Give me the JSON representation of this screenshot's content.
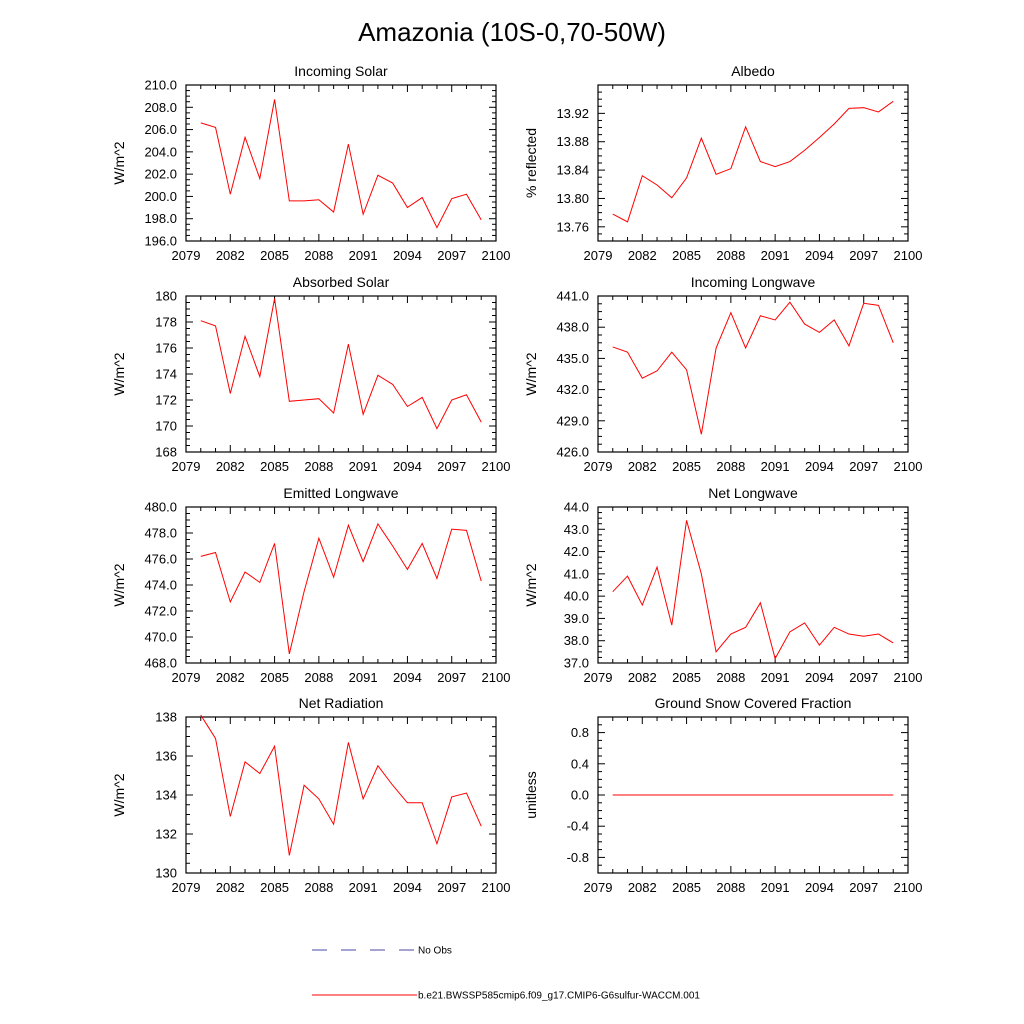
{
  "title": "Amazonia (10S-0,70-50W)",
  "colors": {
    "series": "#ff0000",
    "obs": "#4a4aa8",
    "axis": "#000000"
  },
  "legend": {
    "obs_label": "No Obs",
    "model_label": "b.e21.BWSSP585cmip6.f09_g17.CMIP6-G6sulfur-WACCM.001"
  },
  "chart_data": [
    {
      "type": "line",
      "title": "Incoming Solar",
      "ylabel": "W/m^2",
      "xlim": [
        2079,
        2100
      ],
      "ylim": [
        196,
        210
      ],
      "xticks": [
        "2079",
        "2082",
        "2085",
        "2088",
        "2091",
        "2094",
        "2097",
        "2100"
      ],
      "yticks": [
        "196.0",
        "198.0",
        "200.0",
        "202.0",
        "204.0",
        "206.0",
        "208.0",
        "210.0"
      ],
      "series": [
        {
          "x": [
            2080,
            2081,
            2082,
            2083,
            2084,
            2085,
            2086,
            2087,
            2088,
            2089,
            2090,
            2091,
            2092,
            2093,
            2094,
            2095,
            2096,
            2097,
            2098,
            2099
          ],
          "values": [
            206.6,
            206.2,
            200.2,
            205.3,
            201.6,
            208.7,
            199.6,
            199.6,
            199.7,
            198.6,
            204.7,
            198.4,
            201.9,
            201.2,
            199.0,
            199.9,
            197.2,
            199.8,
            200.2,
            197.9
          ]
        }
      ]
    },
    {
      "type": "line",
      "title": "Albedo",
      "ylabel": "% reflected",
      "xlim": [
        2079,
        2100
      ],
      "ylim": [
        13.74,
        13.96
      ],
      "xticks": [
        "2079",
        "2082",
        "2085",
        "2088",
        "2091",
        "2094",
        "2097",
        "2100"
      ],
      "yticks": [
        "13.76",
        "13.80",
        "13.84",
        "13.88",
        "13.92"
      ],
      "series": [
        {
          "x": [
            2080,
            2081,
            2082,
            2083,
            2084,
            2085,
            2086,
            2087,
            2088,
            2089,
            2090,
            2091,
            2092,
            2093,
            2094,
            2095,
            2096,
            2097,
            2098,
            2099
          ],
          "values": [
            13.778,
            13.767,
            13.832,
            13.819,
            13.801,
            13.829,
            13.885,
            13.834,
            13.842,
            13.901,
            13.852,
            13.845,
            13.852,
            13.868,
            13.886,
            13.905,
            13.927,
            13.928,
            13.922,
            13.937
          ]
        }
      ]
    },
    {
      "type": "line",
      "title": "Absorbed Solar",
      "ylabel": "W/m^2",
      "xlim": [
        2079,
        2100
      ],
      "ylim": [
        168,
        180
      ],
      "xticks": [
        "2079",
        "2082",
        "2085",
        "2088",
        "2091",
        "2094",
        "2097",
        "2100"
      ],
      "yticks": [
        "168",
        "170",
        "172",
        "174",
        "176",
        "178",
        "180"
      ],
      "series": [
        {
          "x": [
            2080,
            2081,
            2082,
            2083,
            2084,
            2085,
            2086,
            2087,
            2088,
            2089,
            2090,
            2091,
            2092,
            2093,
            2094,
            2095,
            2096,
            2097,
            2098,
            2099
          ],
          "values": [
            178.1,
            177.7,
            172.5,
            176.9,
            173.8,
            179.8,
            171.9,
            172.0,
            172.1,
            171.0,
            176.3,
            170.9,
            173.9,
            173.2,
            171.5,
            172.2,
            169.8,
            172.0,
            172.4,
            170.3
          ]
        }
      ]
    },
    {
      "type": "line",
      "title": "Incoming Longwave",
      "ylabel": "W/m^2",
      "xlim": [
        2079,
        2100
      ],
      "ylim": [
        426,
        441
      ],
      "xticks": [
        "2079",
        "2082",
        "2085",
        "2088",
        "2091",
        "2094",
        "2097",
        "2100"
      ],
      "yticks": [
        "426.0",
        "429.0",
        "432.0",
        "435.0",
        "438.0",
        "441.0"
      ],
      "series": [
        {
          "x": [
            2080,
            2081,
            2082,
            2083,
            2084,
            2085,
            2086,
            2087,
            2088,
            2089,
            2090,
            2091,
            2092,
            2093,
            2094,
            2095,
            2096,
            2097,
            2098,
            2099
          ],
          "values": [
            436.1,
            435.6,
            433.1,
            433.8,
            435.6,
            433.9,
            427.7,
            436.0,
            439.4,
            436.0,
            439.1,
            438.7,
            440.4,
            438.3,
            437.5,
            438.7,
            436.2,
            440.3,
            440.1,
            436.5
          ]
        }
      ]
    },
    {
      "type": "line",
      "title": "Emitted Longwave",
      "ylabel": "W/m^2",
      "xlim": [
        2079,
        2100
      ],
      "ylim": [
        468,
        480
      ],
      "xticks": [
        "2079",
        "2082",
        "2085",
        "2088",
        "2091",
        "2094",
        "2097",
        "2100"
      ],
      "yticks": [
        "468.0",
        "470.0",
        "472.0",
        "474.0",
        "476.0",
        "478.0",
        "480.0"
      ],
      "series": [
        {
          "x": [
            2080,
            2081,
            2082,
            2083,
            2084,
            2085,
            2086,
            2087,
            2088,
            2089,
            2090,
            2091,
            2092,
            2093,
            2094,
            2095,
            2096,
            2097,
            2098,
            2099
          ],
          "values": [
            476.2,
            476.5,
            472.7,
            475.0,
            474.2,
            477.2,
            468.7,
            473.5,
            477.6,
            474.6,
            478.6,
            475.8,
            478.7,
            477.0,
            475.2,
            477.2,
            474.5,
            478.3,
            478.2,
            474.3
          ]
        }
      ]
    },
    {
      "type": "line",
      "title": "Net Longwave",
      "ylabel": "W/m^2",
      "xlim": [
        2079,
        2100
      ],
      "ylim": [
        37,
        44
      ],
      "xticks": [
        "2079",
        "2082",
        "2085",
        "2088",
        "2091",
        "2094",
        "2097",
        "2100"
      ],
      "yticks": [
        "37.0",
        "38.0",
        "39.0",
        "40.0",
        "41.0",
        "42.0",
        "43.0",
        "44.0"
      ],
      "series": [
        {
          "x": [
            2080,
            2081,
            2082,
            2083,
            2084,
            2085,
            2086,
            2087,
            2088,
            2089,
            2090,
            2091,
            2092,
            2093,
            2094,
            2095,
            2096,
            2097,
            2098,
            2099
          ],
          "values": [
            40.2,
            40.9,
            39.6,
            41.3,
            38.7,
            43.4,
            41.0,
            37.5,
            38.3,
            38.6,
            39.7,
            37.2,
            38.4,
            38.8,
            37.8,
            38.6,
            38.3,
            38.2,
            38.3,
            37.9
          ]
        }
      ]
    },
    {
      "type": "line",
      "title": "Net Radiation",
      "ylabel": "W/m^2",
      "xlim": [
        2079,
        2100
      ],
      "ylim": [
        130,
        138
      ],
      "xticks": [
        "2079",
        "2082",
        "2085",
        "2088",
        "2091",
        "2094",
        "2097",
        "2100"
      ],
      "yticks": [
        "130",
        "132",
        "134",
        "136",
        "138"
      ],
      "series": [
        {
          "x": [
            2080,
            2081,
            2082,
            2083,
            2084,
            2085,
            2086,
            2087,
            2088,
            2089,
            2090,
            2091,
            2092,
            2093,
            2094,
            2095,
            2096,
            2097,
            2098,
            2099
          ],
          "values": [
            138.1,
            136.9,
            132.9,
            135.7,
            135.1,
            136.5,
            130.9,
            134.5,
            133.8,
            132.5,
            136.7,
            133.8,
            135.5,
            134.5,
            133.6,
            133.6,
            131.5,
            133.9,
            134.1,
            132.4
          ]
        }
      ]
    },
    {
      "type": "line",
      "title": "Ground Snow Covered Fraction",
      "ylabel": "unitless",
      "xlim": [
        2079,
        2100
      ],
      "ylim": [
        -1.0,
        1.0
      ],
      "xticks": [
        "2079",
        "2082",
        "2085",
        "2088",
        "2091",
        "2094",
        "2097",
        "2100"
      ],
      "yticks": [
        "-0.8",
        "-0.4",
        "0.0",
        "0.4",
        "0.8"
      ],
      "series": [
        {
          "x": [
            2080,
            2081,
            2082,
            2083,
            2084,
            2085,
            2086,
            2087,
            2088,
            2089,
            2090,
            2091,
            2092,
            2093,
            2094,
            2095,
            2096,
            2097,
            2098,
            2099
          ],
          "values": [
            0,
            0,
            0,
            0,
            0,
            0,
            0,
            0,
            0,
            0,
            0,
            0,
            0,
            0,
            0,
            0,
            0,
            0,
            0,
            0
          ]
        }
      ]
    }
  ]
}
